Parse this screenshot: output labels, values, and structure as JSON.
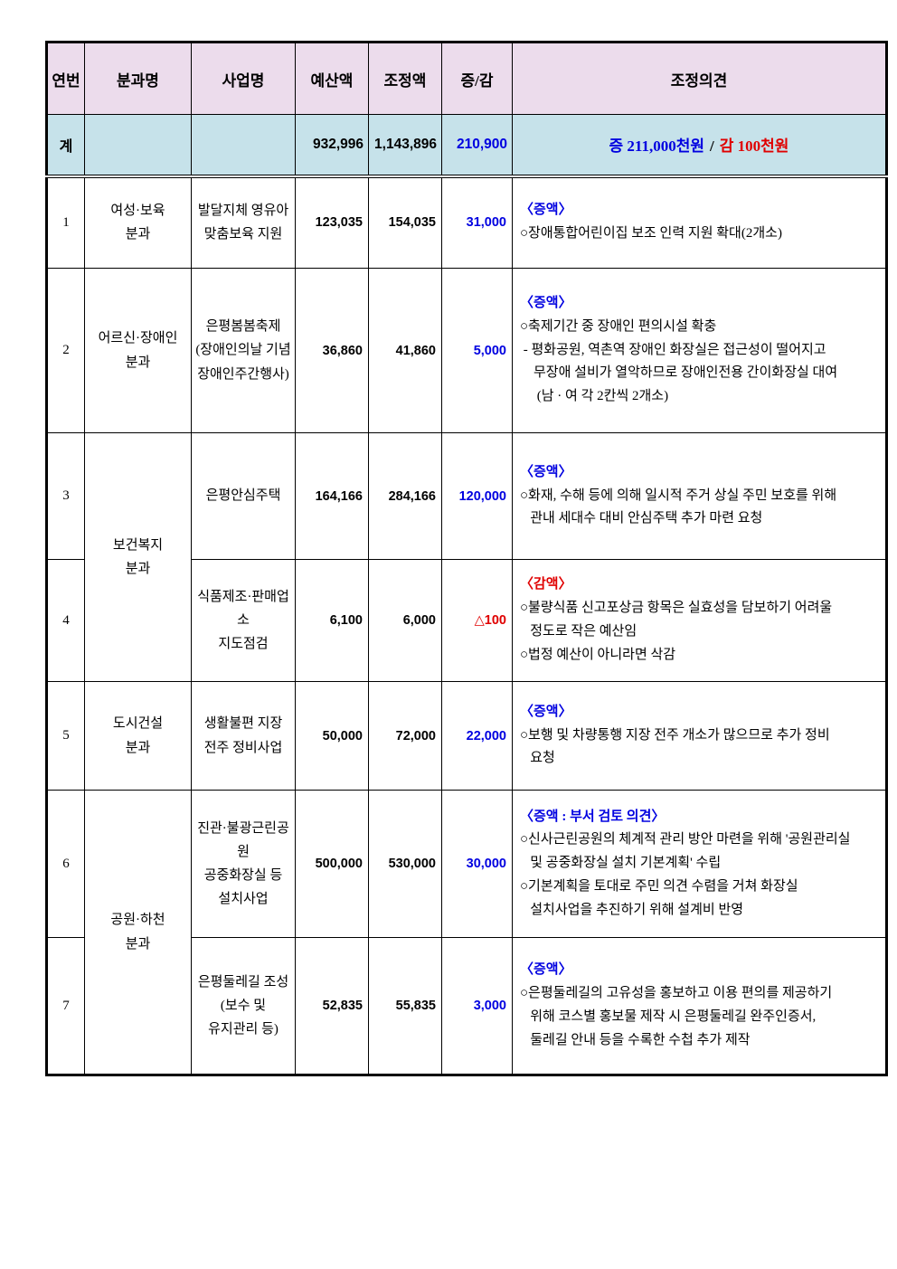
{
  "colors": {
    "header_bg": "#ecdcec",
    "total_bg": "#c6e2ea",
    "increase_blue": "#0000e0",
    "decrease_red": "#e00000"
  },
  "table": {
    "headers": [
      "연번",
      "분과명",
      "사업명",
      "예산액",
      "조정액",
      "증/감",
      "조정의견"
    ],
    "total": {
      "label": "계",
      "budget": "932,996",
      "adjusted": "1,143,896",
      "change": "210,900",
      "opinion_increase": "증 211,000천원",
      "opinion_separator": "/",
      "opinion_decrease": "감 100천원"
    },
    "rows": [
      {
        "no": "1",
        "division": "여성·보육\n분과",
        "division_rowspan": 1,
        "project": "발달지체 영유아\n맞춤보육 지원",
        "budget": "123,035",
        "adjusted": "154,035",
        "change": "31,000",
        "change_color": "blue",
        "opinion": {
          "heading": "〈증액〉",
          "heading_color": "blue",
          "lines": [
            "○장애통합어린이집 보조 인력 지원 확대(2개소)"
          ]
        }
      },
      {
        "no": "2",
        "division": "어르신·장애인\n분과",
        "division_rowspan": 1,
        "project": "은평봄봄축제\n(장애인의날 기념\n장애인주간행사)",
        "budget": "36,860",
        "adjusted": "41,860",
        "change": "5,000",
        "change_color": "blue",
        "opinion": {
          "heading": "〈증액〉",
          "heading_color": "blue",
          "lines": [
            "○축제기간 중 장애인 편의시설 확충",
            " - 평화공원, 역촌역 장애인 화장실은 접근성이 떨어지고",
            "    무장애 설비가 열악하므로 장애인전용 간이화장실 대여",
            "     (남 · 여 각 2칸씩 2개소)"
          ]
        }
      },
      {
        "no": "3",
        "division": "보건복지\n분과",
        "division_rowspan": 2,
        "project": "은평안심주택",
        "budget": "164,166",
        "adjusted": "284,166",
        "change": "120,000",
        "change_color": "blue",
        "opinion": {
          "heading": "〈증액〉",
          "heading_color": "blue",
          "lines": [
            "○화재, 수해 등에 의해 일시적 주거 상실 주민 보호를 위해",
            "   관내 세대수 대비 안심주택 추가 마련 요청"
          ]
        }
      },
      {
        "no": "4",
        "division": null,
        "division_rowspan": 0,
        "project": "식품제조·판매업소\n지도점검",
        "budget": "6,100",
        "adjusted": "6,000",
        "change": "△100",
        "change_color": "red",
        "opinion": {
          "heading": "〈감액〉",
          "heading_color": "red",
          "lines": [
            "○불량식품 신고포상금 항목은 실효성을 담보하기 어려울",
            "   정도로 작은 예산임",
            "○법정 예산이 아니라면 삭감"
          ]
        }
      },
      {
        "no": "5",
        "division": "도시건설\n분과",
        "division_rowspan": 1,
        "project": "생활불편 지장\n전주 정비사업",
        "budget": "50,000",
        "adjusted": "72,000",
        "change": "22,000",
        "change_color": "blue",
        "opinion": {
          "heading": "〈증액〉",
          "heading_color": "blue",
          "lines": [
            "○보행 및 차량통행 지장 전주 개소가 많으므로 추가 정비",
            "   요청"
          ]
        }
      },
      {
        "no": "6",
        "division": "공원·하천\n분과",
        "division_rowspan": 2,
        "project": "진관·불광근린공원\n공중화장실 등\n설치사업",
        "budget": "500,000",
        "adjusted": "530,000",
        "change": "30,000",
        "change_color": "blue",
        "opinion": {
          "heading": "〈증액 : 부서 검토 의견〉",
          "heading_color": "blue",
          "lines": [
            "○신사근린공원의 체계적 관리 방안 마련을 위해 '공원관리실",
            "   및 공중화장실 설치 기본계획' 수립",
            "○기본계획을 토대로 주민 의견 수렴을 거쳐 화장실",
            "   설치사업을 추진하기 위해 설계비 반영"
          ]
        }
      },
      {
        "no": "7",
        "division": null,
        "division_rowspan": 0,
        "project": "은평둘레길 조성\n(보수 및\n유지관리 등)",
        "budget": "52,835",
        "adjusted": "55,835",
        "change": "3,000",
        "change_color": "blue",
        "opinion": {
          "heading": "〈증액〉",
          "heading_color": "blue",
          "lines": [
            "○은평둘레길의 고유성을 홍보하고 이용 편의를 제공하기",
            "   위해 코스별 홍보물 제작 시 은평둘레길 완주인증서,",
            "   둘레길 안내 등을 수록한 수첩 추가 제작"
          ]
        }
      }
    ]
  }
}
